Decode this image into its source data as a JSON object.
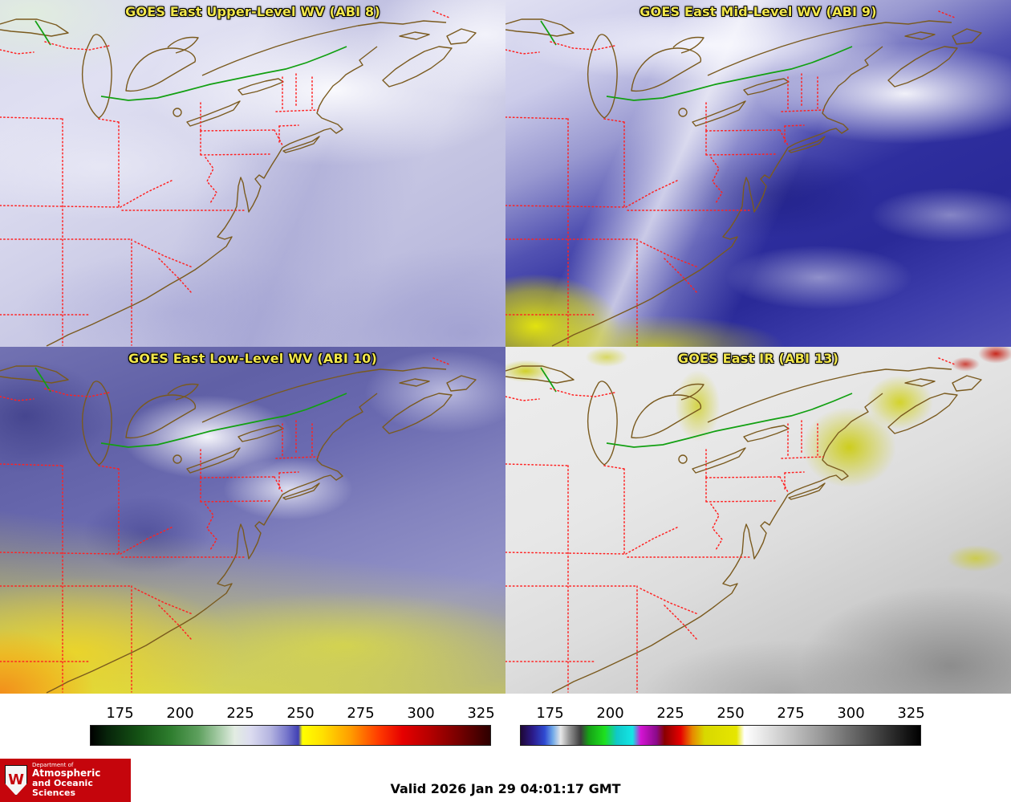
{
  "colors": {
    "panel_title": "#f2e74b",
    "state_border": "#ff2222",
    "coastline": "#7a5a1e",
    "intl_border": "#12a012",
    "logo_bg": "#c5050c"
  },
  "panels": [
    {
      "key": "abi8",
      "title": "GOES East Upper-Level WV (ABI 8)"
    },
    {
      "key": "abi9",
      "title": "GOES East Mid-Level WV (ABI 9)"
    },
    {
      "key": "abi10",
      "title": "GOES East Low-Level WV (ABI 10)"
    },
    {
      "key": "abi13",
      "title": "GOES East IR (ABI 13)"
    }
  ],
  "colorbars": [
    {
      "key": "wv",
      "ticks": [
        "175",
        "200",
        "225",
        "250",
        "275",
        "300",
        "325"
      ],
      "stops": [
        [
          "0%",
          "#000000"
        ],
        [
          "4%",
          "#07230a"
        ],
        [
          "12%",
          "#145214"
        ],
        [
          "20%",
          "#2e7d2e"
        ],
        [
          "27%",
          "#5ea05e"
        ],
        [
          "32%",
          "#a5cba5"
        ],
        [
          "36%",
          "#e2ece2"
        ],
        [
          "40%",
          "#dcdcf0"
        ],
        [
          "45%",
          "#b4b4e0"
        ],
        [
          "49%",
          "#7878cc"
        ],
        [
          "52%",
          "#4040b4"
        ],
        [
          "53%",
          "#ffff00"
        ],
        [
          "58%",
          "#ffe000"
        ],
        [
          "65%",
          "#ff9d00"
        ],
        [
          "72%",
          "#ff3c00"
        ],
        [
          "78%",
          "#e60000"
        ],
        [
          "85%",
          "#b40000"
        ],
        [
          "92%",
          "#780000"
        ],
        [
          "100%",
          "#2d0000"
        ]
      ]
    },
    {
      "key": "ir",
      "ticks": [
        "175",
        "200",
        "225",
        "250",
        "275",
        "300",
        "325"
      ],
      "stops": [
        [
          "0%",
          "#1e0736"
        ],
        [
          "3%",
          "#2b1b8a"
        ],
        [
          "6%",
          "#2f4ad2"
        ],
        [
          "8%",
          "#6fa8e8"
        ],
        [
          "10%",
          "#e8e8e8"
        ],
        [
          "12%",
          "#9a9a9a"
        ],
        [
          "15%",
          "#3c3c3c"
        ],
        [
          "17%",
          "#16a016"
        ],
        [
          "21%",
          "#1ee01e"
        ],
        [
          "24%",
          "#10c8c8"
        ],
        [
          "28%",
          "#14e6e6"
        ],
        [
          "30%",
          "#d414d4"
        ],
        [
          "34%",
          "#8a0a8a"
        ],
        [
          "36%",
          "#8a0000"
        ],
        [
          "40%",
          "#e60000"
        ],
        [
          "43%",
          "#e68a00"
        ],
        [
          "46%",
          "#d8d800"
        ],
        [
          "54%",
          "#e6e600"
        ],
        [
          "56%",
          "#ffffff"
        ],
        [
          "62%",
          "#e0e0e0"
        ],
        [
          "75%",
          "#9a9a9a"
        ],
        [
          "88%",
          "#4a4a4a"
        ],
        [
          "100%",
          "#000000"
        ]
      ]
    }
  ],
  "footer": {
    "valid_time": "Valid 2026 Jan 29 04:01:17 GMT",
    "logo": {
      "crest_letter": "W",
      "line1": "Department of",
      "line2": "Atmospheric",
      "line3": "and Oceanic Sciences"
    }
  }
}
